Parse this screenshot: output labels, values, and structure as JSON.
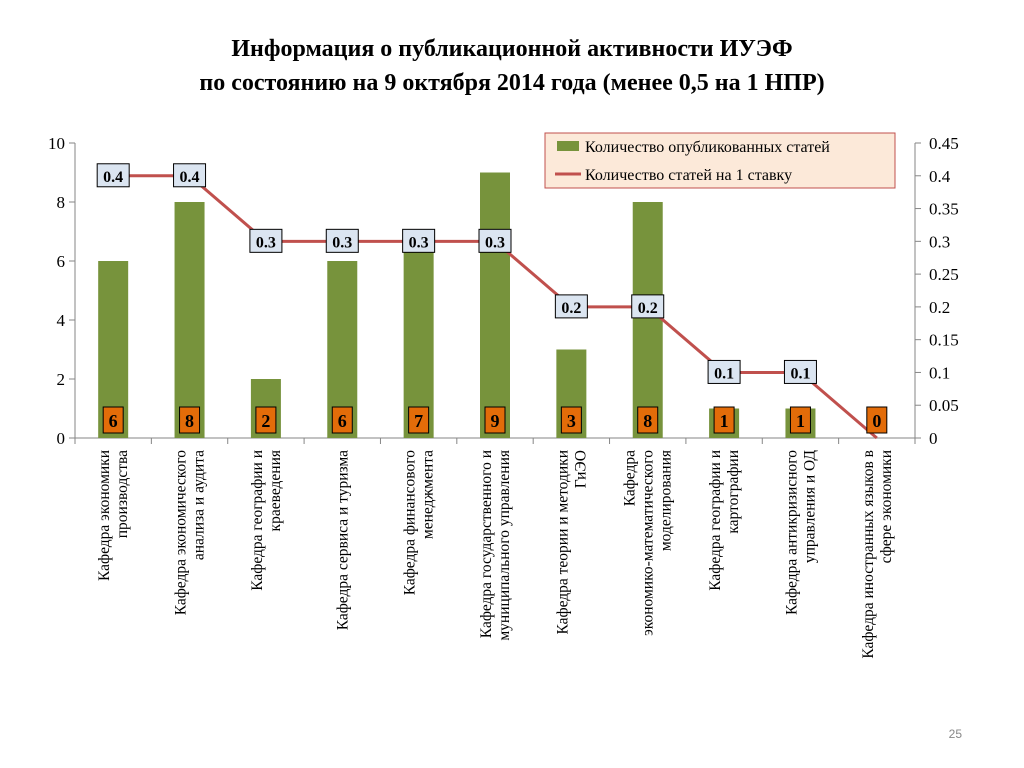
{
  "slide": {
    "title_line1": "Информация о публикационной активности ИУЭФ",
    "title_line2": "по состоянию на 9 октября 2014 года (менее 0,5 на 1 НПР)",
    "page_number": "25"
  },
  "colors": {
    "bar": "#77933c",
    "line": "#c0504d",
    "bar_label_bg": "#e36c09",
    "line_label_bg": "#dbe5f1",
    "legend_bg": "#fce9d9",
    "legend_border": "#c0504d"
  },
  "chart_data": {
    "type": "bar",
    "categories": [
      "Кафедра экономики производства",
      "Кафедра экономического анализа и аудита",
      "Кафедра географии и краеведения",
      "Кафедра сервиса и туризма",
      "Кафедра финансового менеджмента",
      "Кафедра государственного и муниципального управления",
      "Кафедра теории и методики ГиЭО",
      "Кафедра экономико-математического моделирования",
      "Кафедра географии и картографии",
      "Кафедра антикризисного управления и ОД",
      "Кафедра иностранных языков в сфере экономики"
    ],
    "series": [
      {
        "name": "Количество опубликованных статей",
        "type": "bar",
        "axis": "left",
        "values": [
          6,
          8,
          2,
          6,
          7,
          9,
          3,
          8,
          1,
          1,
          0
        ],
        "labels": [
          "6",
          "8",
          "2",
          "6",
          "7",
          "9",
          "3",
          "8",
          "1",
          "1",
          "0"
        ]
      },
      {
        "name": "Количество статей на 1 ставку",
        "type": "line",
        "axis": "right",
        "values": [
          0.4,
          0.4,
          0.3,
          0.3,
          0.3,
          0.3,
          0.2,
          0.2,
          0.1,
          0.1,
          0
        ],
        "labels": [
          "0.4",
          "0.4",
          "0.3",
          "0.3",
          "0.3",
          "0.3",
          "0.2",
          "0.2",
          "0.1",
          "0.1",
          ""
        ]
      }
    ],
    "y_left": {
      "min": 0,
      "max": 10,
      "ticks": [
        "0",
        "2",
        "4",
        "6",
        "8",
        "10"
      ]
    },
    "y_right": {
      "min": 0,
      "max": 0.45,
      "ticks": [
        "0",
        "0.05",
        "0.1",
        "0.15",
        "0.2",
        "0.25",
        "0.3",
        "0.35",
        "0.4",
        "0.45"
      ]
    },
    "legend": {
      "position": "top-right"
    },
    "grid": false
  }
}
